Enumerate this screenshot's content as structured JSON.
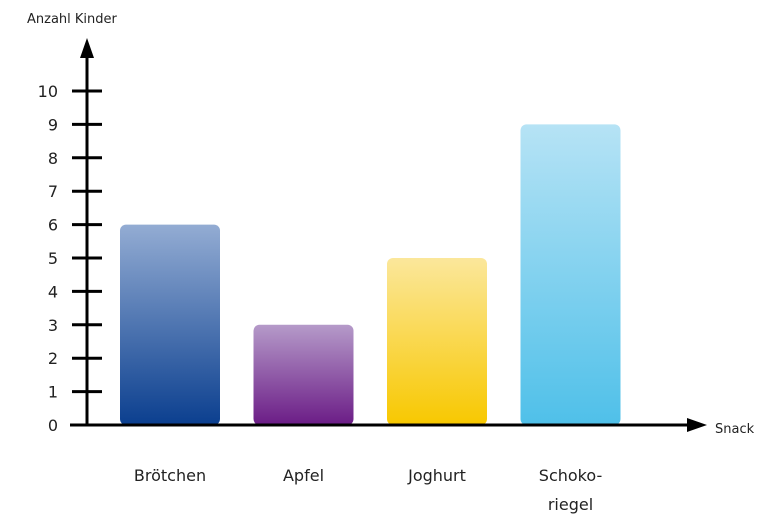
{
  "chart_data": {
    "type": "bar",
    "title": "",
    "ylabel": "Anzahl Kinder",
    "xlabel": "Snack",
    "ylim": [
      0,
      10
    ],
    "yticks": [
      0,
      1,
      2,
      3,
      4,
      5,
      6,
      7,
      8,
      9,
      10
    ],
    "categories": [
      [
        "Brötchen"
      ],
      [
        "Apfel"
      ],
      [
        "Joghurt"
      ],
      [
        "Schoko-",
        "riegel"
      ]
    ],
    "values": [
      6,
      3,
      5,
      9
    ],
    "colors": [
      {
        "top": "#93acd3",
        "bottom": "#0b3f8f"
      },
      {
        "top": "#b59ac9",
        "bottom": "#6b1c86"
      },
      {
        "top": "#fbe79b",
        "bottom": "#f8c800"
      },
      {
        "top": "#b6e3f5",
        "bottom": "#4fc0e9"
      }
    ],
    "grid": false,
    "legend": "none"
  }
}
